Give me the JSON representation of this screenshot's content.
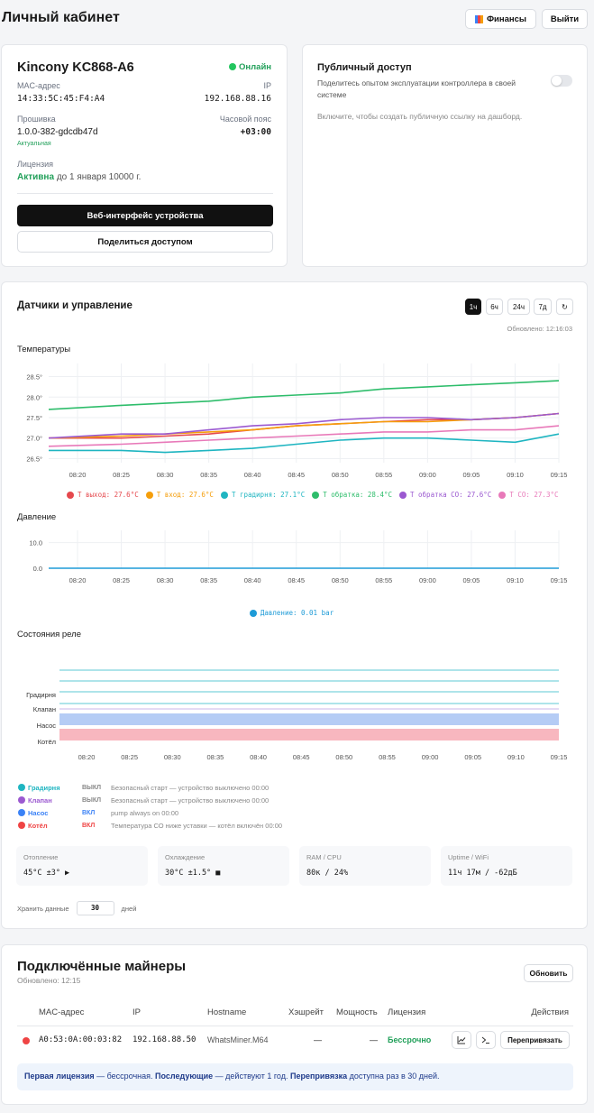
{
  "header": {
    "title": "Личный кабинет",
    "finance_label": "Финансы",
    "logout_label": "Выйти"
  },
  "device": {
    "name": "Kincony KC868-A6",
    "status": "Онлайн",
    "mac_label": "MAC-адрес",
    "mac": "14:33:5C:45:F4:A4",
    "ip_label": "IP",
    "ip": "192.168.88.16",
    "fw_label": "Прошивка",
    "fw": "1.0.0-382-gdcdb47d",
    "fw_status": "Актуальная",
    "tz_label": "Часовой пояс",
    "tz": "+03:00",
    "license_label": "Лицензия",
    "license_active": "Активна",
    "license_until": "до 1 января 10000 г.",
    "web_button": "Веб-интерфейс устройства",
    "share_button": "Поделиться доступом"
  },
  "public_access": {
    "title": "Публичный доступ",
    "description": "Поделитесь опытом эксплуатации контроллера в своей системе",
    "hint": "Включите, чтобы создать публичную ссылку на дашборд.",
    "enabled": false
  },
  "sensors": {
    "title": "Датчики и управление",
    "ranges": [
      "1ч",
      "6ч",
      "24ч",
      "7д"
    ],
    "active_range": "1ч",
    "updated": "Обновлено: 12:16:03",
    "temps_title": "Температуры",
    "pressure_title": "Давление",
    "relay_title": "Состояния реле",
    "relay_labels": [
      "Градирня",
      "Клапан",
      "Насос",
      "Котёл"
    ],
    "relays": [
      {
        "name": "Градирня",
        "state": "ВЫКЛ",
        "desc": "Безопасный старт — устройство выключено 00:00",
        "color": "#1fb5c1"
      },
      {
        "name": "Клапан",
        "state": "ВЫКЛ",
        "desc": "Безопасный старт — устройство выключено 00:00",
        "color": "#9b59d0"
      },
      {
        "name": "Насос",
        "state": "ВКЛ",
        "desc": "pump always on 00:00",
        "color": "#3b82f6"
      },
      {
        "name": "Котёл",
        "state": "ВКЛ",
        "desc": "Температура СО ниже уставки — котёл включён 00:00",
        "color": "#ef4444"
      }
    ],
    "stats": [
      {
        "title": "Отопление",
        "value": "45°C ±3° ▶"
      },
      {
        "title": "Охлаждение",
        "value": "30°C ±1.5° ■"
      },
      {
        "title": "RAM / CPU",
        "value": "80к / 24%"
      },
      {
        "title": "Uptime / WiFi",
        "value": "11ч 17м / -62дБ"
      }
    ],
    "retention_label": "Хранить данные",
    "retention_value": "30",
    "retention_unit": "дней"
  },
  "chart_data": [
    {
      "type": "line",
      "title": "Температуры",
      "x": [
        "08:20",
        "08:25",
        "08:30",
        "08:35",
        "08:40",
        "08:45",
        "08:50",
        "08:55",
        "09:00",
        "09:05",
        "09:10",
        "09:15"
      ],
      "ylim": [
        26.4,
        28.6
      ],
      "yticks": [
        "26.5°",
        "27.0°",
        "27.5°",
        "28.0°",
        "28.5°"
      ],
      "series": [
        {
          "name": "Т выход: 27.6°C",
          "color": "#e5484d",
          "values": [
            27.0,
            27.0,
            27.05,
            27.1,
            27.2,
            27.3,
            27.35,
            27.4,
            27.45,
            27.45,
            27.5,
            27.6
          ]
        },
        {
          "name": "Т вход: 27.6°C",
          "color": "#f59e0b",
          "values": [
            27.0,
            27.05,
            27.1,
            27.15,
            27.2,
            27.3,
            27.35,
            27.4,
            27.4,
            27.45,
            27.5,
            27.6
          ]
        },
        {
          "name": "Т градирня: 27.1°C",
          "color": "#1fb5c1",
          "values": [
            26.7,
            26.7,
            26.65,
            26.7,
            26.75,
            26.85,
            26.95,
            27.0,
            27.0,
            26.95,
            26.9,
            27.1
          ]
        },
        {
          "name": "Т обратка: 28.4°C",
          "color": "#2ebd6b",
          "values": [
            27.7,
            27.8,
            27.85,
            27.9,
            28.0,
            28.05,
            28.1,
            28.2,
            28.25,
            28.3,
            28.35,
            28.4
          ]
        },
        {
          "name": "Т обратка СО: 27.6°C",
          "color": "#9b59d0",
          "values": [
            27.0,
            27.1,
            27.1,
            27.2,
            27.3,
            27.35,
            27.45,
            27.5,
            27.5,
            27.45,
            27.5,
            27.6
          ]
        },
        {
          "name": "Т СО: 27.3°C",
          "color": "#e879b9",
          "values": [
            26.8,
            26.85,
            26.9,
            26.95,
            27.0,
            27.05,
            27.1,
            27.15,
            27.15,
            27.2,
            27.2,
            27.3
          ]
        }
      ]
    },
    {
      "type": "line",
      "title": "Давление",
      "x": [
        "08:20",
        "08:25",
        "08:30",
        "08:35",
        "08:40",
        "08:45",
        "08:50",
        "08:55",
        "09:00",
        "09:05",
        "09:10",
        "09:15"
      ],
      "ylim": [
        0,
        12
      ],
      "yticks": [
        "0.0",
        "10.0"
      ],
      "series": [
        {
          "name": "Давление: 0.01 bar",
          "color": "#1e9bd7",
          "values": [
            0.01,
            0.01,
            0.01,
            0.01,
            0.01,
            0.01,
            0.01,
            0.01,
            0.01,
            0.01,
            0.01,
            0.01
          ]
        }
      ]
    }
  ],
  "miners": {
    "title": "Подключённые майнеры",
    "updated": "Обновлено: 12:15",
    "refresh_label": "Обновить",
    "columns": [
      "MAC-адрес",
      "IP",
      "Hostname",
      "Хэшрейт",
      "Мощность",
      "Лицензия",
      "Действия"
    ],
    "rows": [
      {
        "mac": "A0:53:0A:00:03:82",
        "ip": "192.168.88.50",
        "hostname": "WhatsMiner.M64",
        "hashrate": "—",
        "power": "—",
        "license": "Бессрочно",
        "rebind": "Перепривязать"
      }
    ],
    "note_b1": "Первая лицензия",
    "note_t1": " — бессрочная. ",
    "note_b2": "Последующие",
    "note_t2": " — действуют 1 год. ",
    "note_b3": "Перепривязка",
    "note_t3": " доступна раз в 30 дней."
  }
}
